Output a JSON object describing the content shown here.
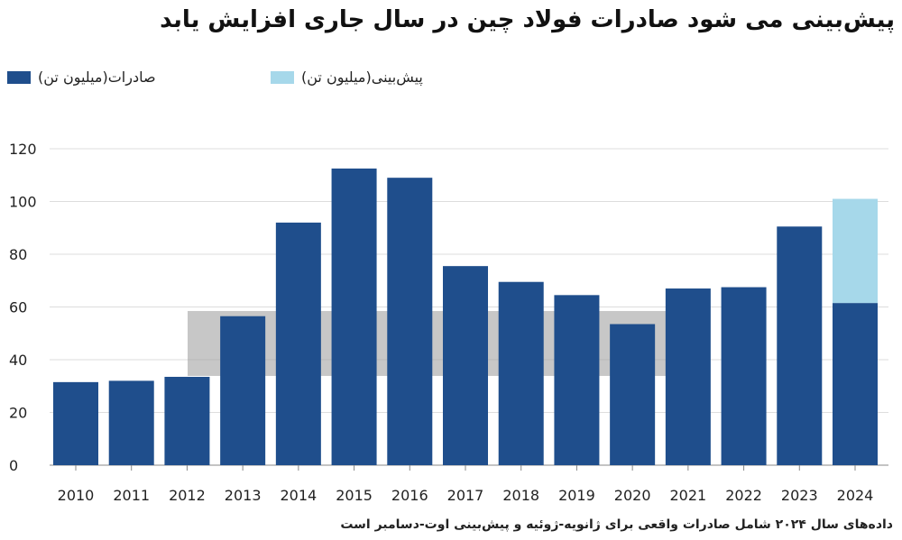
{
  "chart_data": {
    "type": "bar",
    "stacked": true,
    "title": "پیش‌بینی می شود صادرات فولاد چین در سال جاری افزایش یابد",
    "xlabel": "",
    "ylabel": "",
    "ylim": [
      0,
      120
    ],
    "yticks": [
      0,
      20,
      40,
      60,
      80,
      100,
      120
    ],
    "grid": true,
    "legend_placement": "top",
    "categories": [
      "2010",
      "2011",
      "2012",
      "2013",
      "2014",
      "2015",
      "2016",
      "2017",
      "2018",
      "2019",
      "2020",
      "2021",
      "2022",
      "2023",
      "2024"
    ],
    "series": [
      {
        "name": "صادرات(میلیون تن)",
        "color": "#1f4e8c",
        "values": [
          31.5,
          32,
          33.5,
          56.5,
          92,
          112.5,
          109,
          75.5,
          69.5,
          64.5,
          53.5,
          67,
          67.5,
          90.5,
          61.5
        ]
      },
      {
        "name": "پیش‌بینی(میلیون تن)",
        "color": "#a6d8ea",
        "values": [
          0,
          0,
          0,
          0,
          0,
          0,
          0,
          0,
          0,
          0,
          0,
          0,
          0,
          0,
          39.5
        ]
      }
    ],
    "footnote": "داده‌های سال ۲۰۲۴ شامل صادرات واقعی برای ژانویه-ژوئیه و پیش‌بینی اوت-دسامبر است"
  }
}
